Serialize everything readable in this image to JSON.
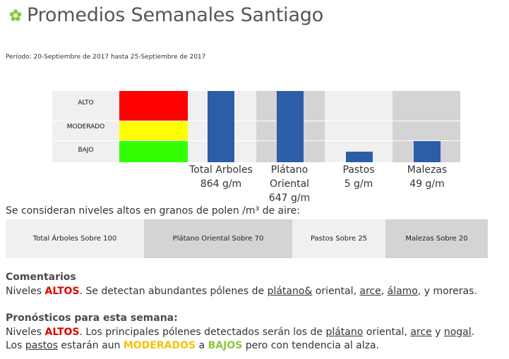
{
  "header": {
    "title": "Promedios Semanales Santiago",
    "period": "Período: 20-Septiembre de 2017 hasta 25-Septiembre de 2017"
  },
  "chart": {
    "levels": {
      "high": "ALTO",
      "moderate": "MODERADO",
      "low": "BAJO"
    },
    "scale_colors": {
      "high": "#ff0000",
      "moderate": "#ffff00",
      "low": "#33ff00"
    },
    "bar_color": "#2c5ea8",
    "categories": [
      {
        "name": "Total Arboles",
        "value": "864 g/m",
        "level_fraction": 1.0
      },
      {
        "name": "Plátano Oriental",
        "value": "647 g/m",
        "level_fraction": 1.0
      },
      {
        "name": "Pastos",
        "value": "5 g/m",
        "level_fraction": 0.15
      },
      {
        "name": "Malezas",
        "value": "49 g/m",
        "level_fraction": 0.3
      }
    ]
  },
  "note": "Se consideran niveles altos en granos de polen /m³ de aire:",
  "thresholds": [
    "Total Árboles Sobre 100",
    "Plátano Oriental Sobre 70",
    "Pastos Sobre 25",
    "Malezas Sobre 20"
  ],
  "comments": {
    "heading": "Comentarios",
    "t1": "Niveles ",
    "level": "ALTOS",
    "t2": ". Se detectan abundantes pólenes de ",
    "l1": "plátano&",
    "t3": " oriental, ",
    "l2": "arce",
    "t4": ", ",
    "l3": "álamo",
    "t5": ", y moreras."
  },
  "forecast": {
    "heading": "Pronósticos para esta semana:",
    "t1": "Niveles ",
    "level": "ALTOS",
    "t2": ". Los principales pólenes detectados serán los de ",
    "l1": "plátano",
    "t3": " oriental, ",
    "l2": "arce",
    "t4": " y ",
    "l3": "nogal",
    "t5": ".",
    "t6": "Los ",
    "l4": "pastos",
    "t7": " estarán aun ",
    "moderate": "MODERADOS",
    "t8": " a ",
    "low": "BAJOS",
    "t9": " pero con tendencia al alza."
  }
}
